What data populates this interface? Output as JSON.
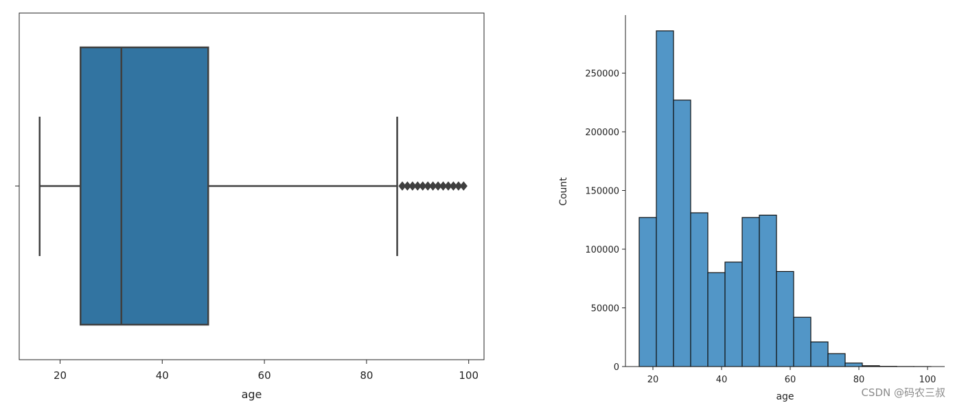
{
  "chart_data": [
    {
      "type": "box",
      "orientation": "horizontal",
      "xlabel": "age",
      "ylabel": "",
      "xlim": [
        12,
        103
      ],
      "xticks": [
        20,
        40,
        60,
        80,
        100
      ],
      "box": {
        "whisker_low": 16,
        "q1": 24,
        "median": 32,
        "q3": 49,
        "whisker_high": 86
      },
      "outliers": [
        87,
        88,
        89,
        90,
        91,
        92,
        93,
        94,
        95,
        96,
        97,
        98,
        99
      ],
      "color": "#3274a1",
      "line_color": "#3f3f3f"
    },
    {
      "type": "histogram",
      "xlabel": "age",
      "ylabel": "Count",
      "xlim": [
        12,
        105
      ],
      "ylim": [
        0,
        300000
      ],
      "xticks": [
        20,
        40,
        60,
        80,
        100
      ],
      "yticks": [
        0,
        50000,
        100000,
        150000,
        200000,
        250000
      ],
      "bin_edges": [
        16,
        21,
        26,
        31,
        36,
        41,
        46,
        51,
        56,
        61,
        66,
        71,
        76,
        81,
        86,
        91,
        96,
        101
      ],
      "counts": [
        127000,
        286000,
        227000,
        131000,
        80000,
        89000,
        127000,
        129000,
        81000,
        42000,
        21000,
        11000,
        3000,
        700,
        200,
        50,
        20
      ],
      "color": "#5296c7",
      "edge_color": "#111111"
    }
  ],
  "watermark": "CSDN @码农三叔"
}
